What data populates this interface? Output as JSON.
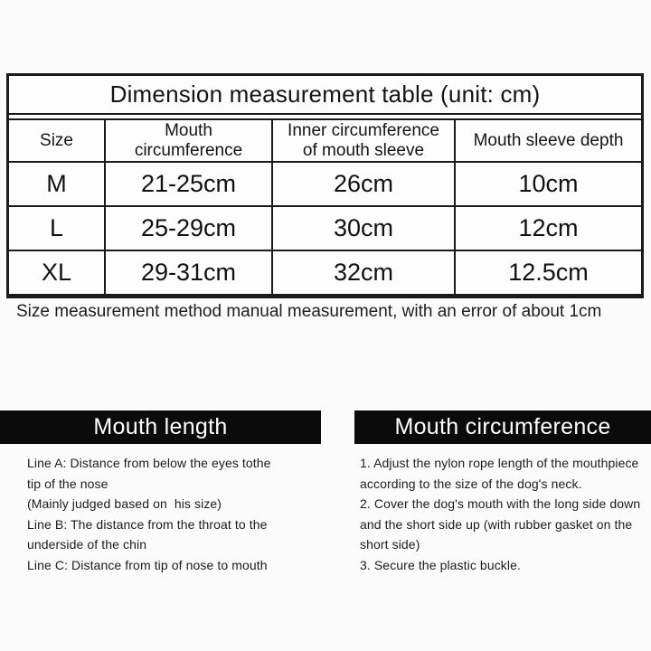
{
  "table": {
    "title": "Dimension measurement table (unit: cm)",
    "headers": {
      "size": "Size",
      "mouth_circumference": "Mouth\ncircumference",
      "inner_circumference": "Inner circumference\nof mouth sleeve",
      "sleeve_depth": "Mouth sleeve depth"
    },
    "rows": [
      {
        "size": "M",
        "mouth_circumference": "21-25cm",
        "inner_circumference": "26cm",
        "sleeve_depth": "10cm"
      },
      {
        "size": "L",
        "mouth_circumference": "25-29cm",
        "inner_circumference": "30cm",
        "sleeve_depth": "12cm"
      },
      {
        "size": "XL",
        "mouth_circumference": "29-31cm",
        "inner_circumference": "32cm",
        "sleeve_depth": "12.5cm"
      }
    ]
  },
  "note": "Size measurement method manual measurement, with an error of about 1cm",
  "sections": {
    "mouth_length": {
      "title": "Mouth length",
      "lines": [
        "Line A: Distance from below the eyes tothe",
        "tip of the nose",
        "(Mainly judged based on  his size)",
        "Line B: The distance from the throat to the",
        "underside of the chin",
        "Line C: Distance from tip of nose to mouth"
      ]
    },
    "mouth_circumference": {
      "title": "Mouth circumference",
      "lines": [
        "1. Adjust the nylon rope length of the mouthpiece",
        "according to the size of the dog's neck.",
        "2. Cover the dog's mouth with the long side down",
        "and the short side up (with rubber gasket on the",
        "short side)",
        "3. Secure the plastic buckle."
      ]
    }
  },
  "colors": {
    "background": "#fbfbfb",
    "table_line": "#1a1a1a",
    "bar_background": "#0b0b0b",
    "bar_text": "#ffffff",
    "text": "#161616"
  }
}
